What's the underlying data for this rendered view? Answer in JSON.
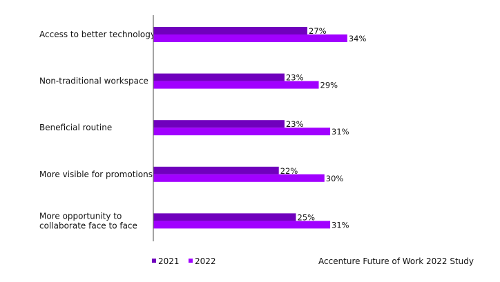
{
  "chart_data": {
    "type": "bar",
    "orientation": "horizontal",
    "categories": [
      [
        "Access to better technology"
      ],
      [
        "Non-traditional workspace"
      ],
      [
        "Beneficial routine"
      ],
      [
        "More visible for promotions"
      ],
      [
        "More opportunity to",
        "collaborate face to face"
      ]
    ],
    "series": [
      {
        "name": "2021",
        "color": "#7000bd",
        "values": [
          27,
          23,
          23,
          22,
          25
        ],
        "labels": [
          "27%",
          "23%",
          "23%",
          "22%",
          "25%"
        ]
      },
      {
        "name": "2022",
        "color": "#a100ff",
        "values": [
          34,
          29,
          31,
          30,
          31
        ],
        "labels": [
          "34%",
          "29%",
          "31%",
          "30%",
          "31%"
        ]
      }
    ],
    "unit": "%",
    "xlim": [
      0,
      60
    ],
    "grid": false,
    "legend_position": "bottom-left",
    "source": "Accenture Future of Work 2022 Study"
  }
}
